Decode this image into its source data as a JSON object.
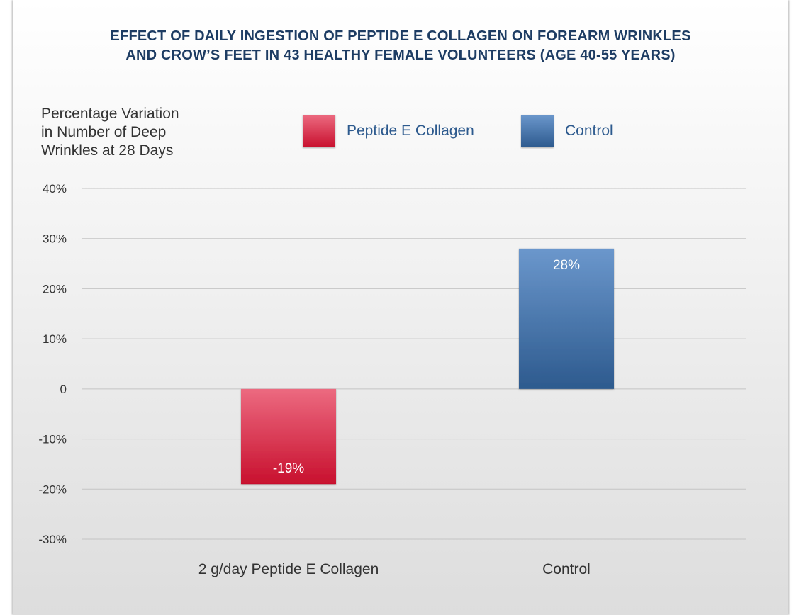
{
  "chart_data": {
    "type": "bar",
    "title": "EFFECT OF DAILY INGESTION OF PEPTIDE E COLLAGEN ON FOREARM WRINKLES AND CROW’S FEET IN 43 HEALTHY FEMALE VOLUNTEERS (AGE 40-55 YEARS)",
    "title_lines": [
      "EFFECT OF DAILY INGESTION OF PEPTIDE E COLLAGEN ON FOREARM WRINKLES",
      "AND CROW’S FEET IN 43 HEALTHY FEMALE VOLUNTEERS (AGE 40-55 YEARS)"
    ],
    "ylabel": "Percentage Variation in Number of Deep Wrinkles at 28 Days",
    "ylabel_lines": [
      "Percentage Variation",
      "in Number of Deep",
      "Wrinkles at 28 Days"
    ],
    "xlabel": "",
    "categories": [
      "2 g/day Peptide E Collagen",
      "Control"
    ],
    "values": [
      -19,
      28
    ],
    "data_labels": [
      "-19%",
      "28%"
    ],
    "ylim": [
      -30,
      40
    ],
    "yticks": [
      {
        "value": 40,
        "label": "40%"
      },
      {
        "value": 30,
        "label": "30%"
      },
      {
        "value": 20,
        "label": "20%"
      },
      {
        "value": 10,
        "label": "10%"
      },
      {
        "value": 0,
        "label": "0"
      },
      {
        "value": -10,
        "label": "-10%"
      },
      {
        "value": -20,
        "label": "-20%"
      },
      {
        "value": -30,
        "label": "-30%"
      }
    ],
    "grid": true,
    "legend": {
      "placement": "top",
      "entries": [
        {
          "name": "Peptide E Collagen",
          "color": "red"
        },
        {
          "name": "Control",
          "color": "blue"
        }
      ]
    },
    "bar_colors": [
      "#d42a47",
      "#3e6ca4"
    ],
    "label_color": "#ffffff",
    "title_color": "#1d3c63"
  }
}
